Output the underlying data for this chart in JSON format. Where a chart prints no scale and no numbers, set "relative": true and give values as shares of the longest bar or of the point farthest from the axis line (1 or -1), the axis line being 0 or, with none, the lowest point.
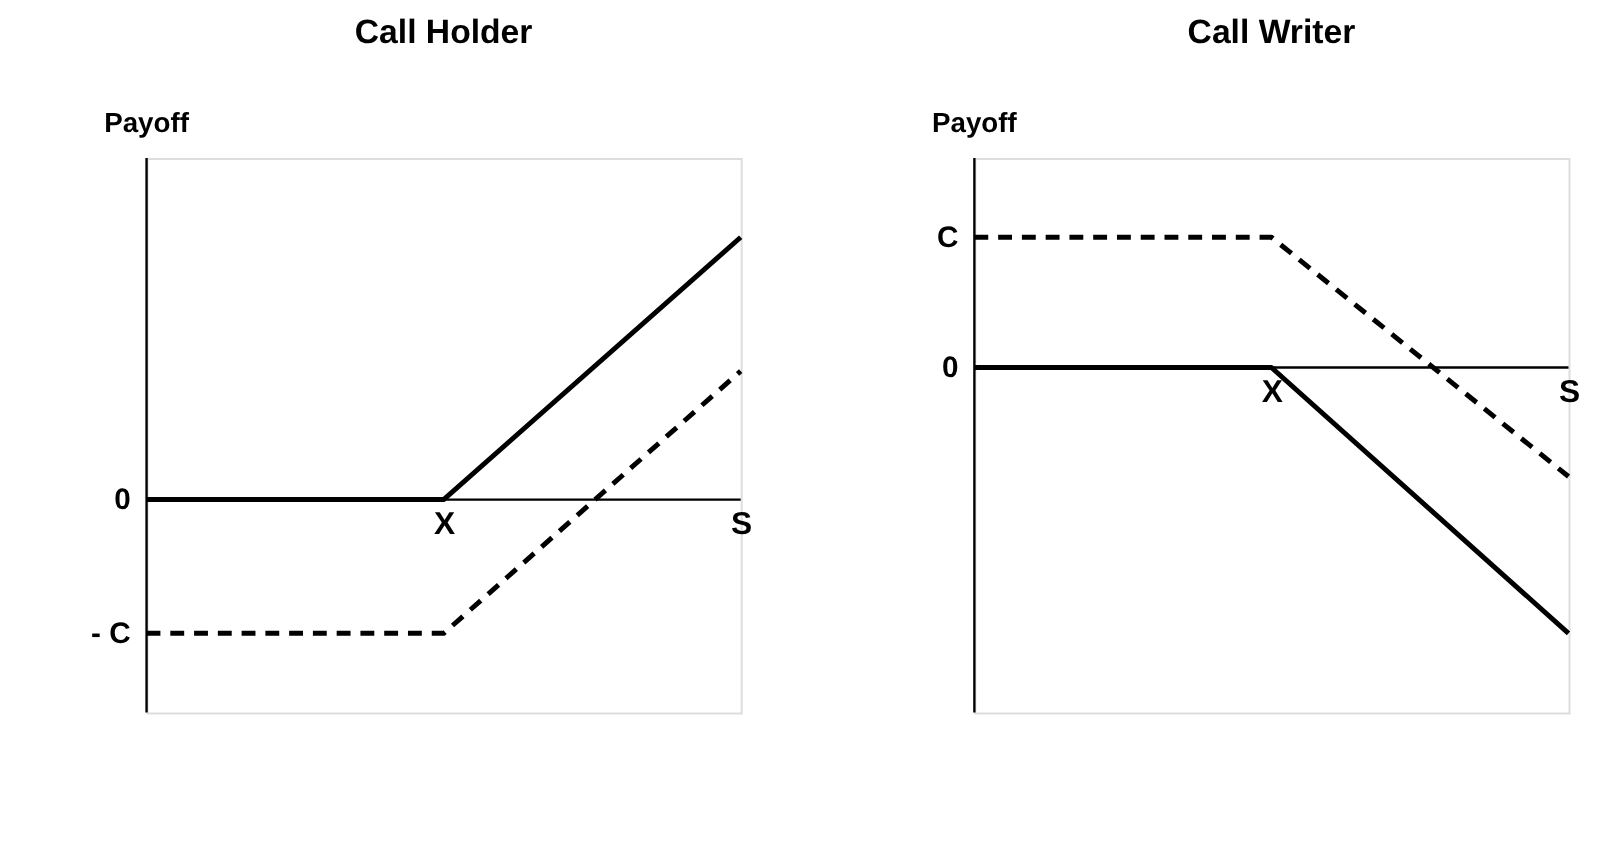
{
  "chart_data": [
    {
      "type": "line",
      "title": "Call Holder",
      "ylabel": "Payoff",
      "relative": true,
      "categories": [
        null,
        "X",
        "S"
      ],
      "grid": false,
      "marker": "none",
      "series": [
        {
          "color": "#000000",
          "line_style": "solid",
          "values": [
            0,
            0,
            1
          ]
        },
        {
          "color": "#000000",
          "line_style": "dashed",
          "values": [
            -0.51,
            -0.51,
            0.49
          ]
        }
      ],
      "annotations": [
        "0",
        "- C"
      ]
    },
    {
      "type": "line",
      "title": "Call Writer",
      "ylabel": "Payoff",
      "relative": true,
      "categories": [
        null,
        "X",
        "S"
      ],
      "grid": false,
      "marker": "none",
      "series": [
        {
          "color": "#000000",
          "line_style": "solid",
          "values": [
            0,
            0,
            -1
          ]
        },
        {
          "color": "#000000",
          "line_style": "dashed",
          "values": [
            0.49,
            0.49,
            -0.41
          ]
        }
      ],
      "annotations": [
        "0",
        "C"
      ]
    }
  ]
}
